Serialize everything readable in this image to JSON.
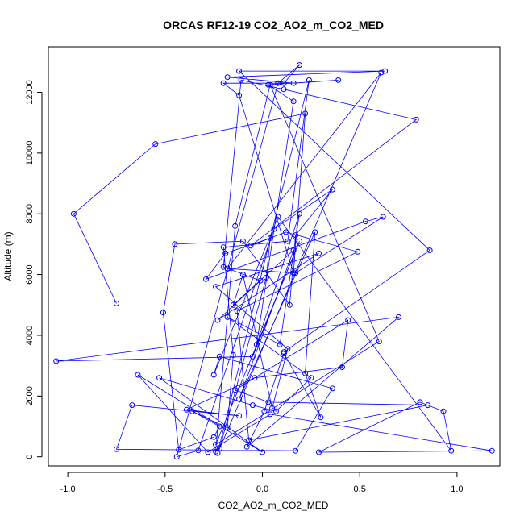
{
  "chart_data": {
    "type": "line",
    "title": "ORCAS RF12-19 CO2_AO2_m_CO2_MED",
    "xlabel": "CO2_AO2_m_CO2_MED",
    "ylabel": "Altitude (m)",
    "xlim": [
      -1.1,
      1.22
    ],
    "ylim": [
      -300,
      13500
    ],
    "xticks": [
      -1.0,
      -0.5,
      0.0,
      0.5,
      1.0
    ],
    "xtick_labels": [
      "-1.0",
      "-0.5",
      "0.0",
      "0.5",
      "1.0"
    ],
    "yticks": [
      0,
      2000,
      4000,
      6000,
      8000,
      10000,
      12000
    ],
    "ytick_labels": [
      "0",
      "2000",
      "4000",
      "6000",
      "8000",
      "10000",
      "12000"
    ],
    "line_color": "#0000ff",
    "marker": "open-circle",
    "series": [
      {
        "x": [
          -0.75,
          -0.97,
          -0.55,
          0.22,
          0.16,
          -0.12,
          -0.2,
          0.11,
          0.19,
          0.08,
          -0.44,
          -0.33,
          0.06,
          0.36,
          0.17,
          0.14,
          -0.1,
          -0.45,
          -0.51,
          -0.43,
          -0.25,
          -0.22,
          -0.36,
          -0.18,
          -0.15,
          -0.2,
          0.13,
          0.24,
          -0.23,
          0.61,
          -0.18,
          0.17,
          0.62,
          0.53,
          -0.29,
          -0.19,
          0.04,
          0.02,
          -0.22,
          -0.24,
          -0.14,
          0.04,
          0.6,
          -0.24,
          0.19,
          -0.05,
          -1.06,
          0.7,
          -0.08,
          0.01,
          0.11,
          0.3,
          0.22,
          0.27,
          -0.12,
          0.16,
          -0.15,
          -0.1,
          0.05,
          0.13,
          -0.24,
          0.29,
          -0.23,
          -0.01,
          -0.2,
          -0.11,
          0.11,
          0.79,
          -0.06,
          0.12,
          0.49,
          -0.13,
          -0.07,
          0.85,
          0.03,
          -0.14,
          0.44,
          0.41,
          -0.04,
          -0.39,
          -0.12,
          -0.67,
          -0.75,
          0.17,
          0.36,
          -0.22,
          -0.25,
          0.08,
          0.97,
          0.93,
          0.81,
          0.29,
          1.18,
          0.04,
          -0.28,
          -0.64,
          0.0,
          -0.53,
          -0.05,
          0.07,
          0.25,
          -0.18,
          0.09,
          0.19,
          -0.03,
          0.16,
          0.03,
          0.39,
          0.16,
          -0.18,
          0.63,
          -0.12,
          0.86,
          0.11
        ],
        "y": [
          5050,
          8000,
          10300,
          11300,
          6050,
          11900,
          12300,
          12300,
          12900,
          12300,
          -0.1,
          210,
          7500,
          8800,
          7300,
          5000,
          7100,
          7000,
          4750,
          230,
          650,
          1000,
          1500,
          950,
          3350,
          6900,
          7100,
          12400,
          120,
          12650,
          6200,
          6050,
          7900,
          7750,
          5850,
          6700,
          7200,
          5900,
          270,
          170,
          7600,
          12250,
          3800,
          400,
          7100,
          3300,
          3150,
          4600,
          330,
          1500,
          3400,
          1300,
          2750,
          7400,
          1900,
          6800,
          5000,
          6000,
          1600,
          3550,
          5600,
          6700,
          4500,
          5800,
          6250,
          12400,
          12100,
          11100,
          6950,
          7400,
          6750,
          4800,
          550,
          1700,
          1800,
          2200,
          4500,
          2950,
          2600,
          1550,
          1350,
          1700,
          250,
          200,
          2250,
          3300,
          2700,
          7900,
          200,
          1500,
          1800,
          150,
          200,
          1400,
          150,
          2700,
          150,
          2600,
          1700,
          1500,
          2600,
          4600,
          3700,
          8000,
          3700,
          11700,
          12250,
          12400,
          12300,
          12500,
          12700,
          12700,
          6800,
          3450
        ]
      }
    ]
  }
}
